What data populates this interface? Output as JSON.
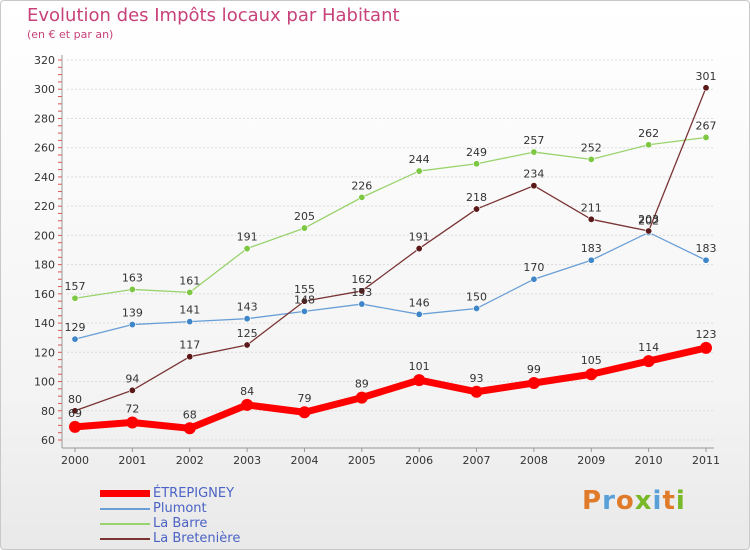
{
  "title": "Evolution des Impôts locaux par Habitant",
  "subtitle": "(en € et par an)",
  "brand": {
    "text": "Proxiti",
    "letter_colors": [
      "#e07b2a",
      "#5aa0d8",
      "#e07b2a",
      "#79b829",
      "#5aa0d8",
      "#e07b2a",
      "#79b829"
    ]
  },
  "chart_data": {
    "type": "line",
    "title": "Evolution des Impôts locaux par Habitant",
    "subtitle": "(en € et par an)",
    "xlabel": "",
    "ylabel": "",
    "x": [
      "2000",
      "2001",
      "2002",
      "2003",
      "2004",
      "2005",
      "2006",
      "2007",
      "2008",
      "2009",
      "2010",
      "2011"
    ],
    "ylim": [
      60,
      320
    ],
    "yticks": [
      60,
      80,
      100,
      120,
      140,
      160,
      180,
      200,
      220,
      240,
      260,
      280,
      300,
      320
    ],
    "grid": true,
    "legend_position": "bottom-left",
    "series": [
      {
        "name": "ÉTREPIGNEY",
        "color": "#ff0000",
        "marker_color": "#ff0000",
        "thick": true,
        "values": [
          69,
          72,
          68,
          84,
          79,
          89,
          101,
          93,
          99,
          105,
          114,
          123
        ],
        "labels": [
          "69",
          "72",
          "68",
          "84",
          "79",
          "89",
          "101",
          "93",
          "99",
          "105",
          "114",
          "123"
        ]
      },
      {
        "name": "Plumont",
        "color": "#6a9fd6",
        "marker_color": "#3f86c8",
        "values": [
          129,
          139,
          141,
          143,
          148,
          153,
          146,
          150,
          170,
          183,
          202,
          183
        ],
        "labels": [
          "129",
          "139",
          "141",
          "143",
          "148",
          "153",
          "146",
          "150",
          "170",
          "183",
          "202",
          "183"
        ]
      },
      {
        "name": "La Barre",
        "color": "#99d36d",
        "marker_color": "#7dc743",
        "values": [
          157,
          163,
          161,
          191,
          205,
          226,
          244,
          249,
          257,
          252,
          262,
          267
        ],
        "labels": [
          "157",
          "163",
          "161",
          "191",
          "205",
          "226",
          "244",
          "249",
          "257",
          "252",
          "262",
          "267"
        ]
      },
      {
        "name": "La Bretenière",
        "color": "#7a3434",
        "marker_color": "#5a1818",
        "values": [
          80,
          94,
          117,
          125,
          155,
          162,
          191,
          218,
          234,
          211,
          203,
          301
        ],
        "labels": [
          "80",
          "94",
          "117",
          "125",
          "155",
          "162",
          "191",
          "218",
          "234",
          "211",
          "203",
          "301"
        ]
      }
    ]
  }
}
